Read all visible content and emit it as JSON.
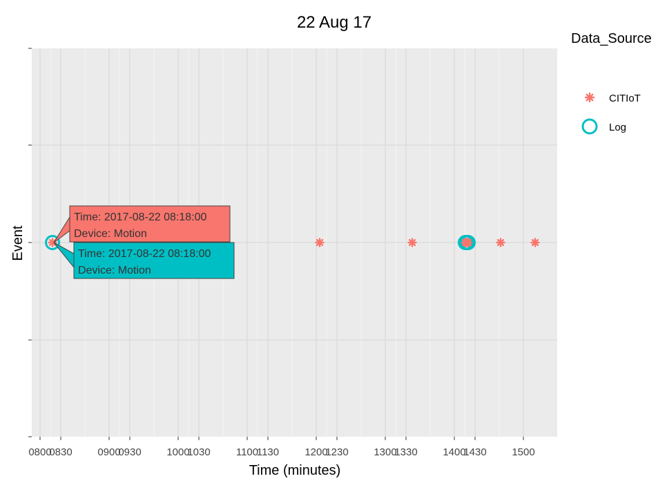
{
  "chart_data": {
    "type": "scatter",
    "title": "22 Aug 17",
    "xlabel": "Time (minutes)",
    "ylabel": "Event",
    "x_ticks": [
      "0800",
      "0830",
      "0900",
      "0930",
      "1000",
      "1030",
      "1100",
      "1130",
      "1200",
      "1230",
      "1300",
      "1330",
      "1400",
      "1430",
      "1500"
    ],
    "xlim": [
      "0800",
      "1545"
    ],
    "grid": true,
    "legend": {
      "title": "Data_Source",
      "placement": "right"
    },
    "series": [
      {
        "name": "CITIoT",
        "color": "#F8766D",
        "marker": "asterisk",
        "x": [
          "0818",
          "1205",
          "1339",
          "1416",
          "1417",
          "1418",
          "1418",
          "1419",
          "1420",
          "1467",
          "1517"
        ]
      },
      {
        "name": "Log",
        "color": "#00BFC4",
        "marker": "circle",
        "x": [
          "0818",
          "1416",
          "1417",
          "1418",
          "1419",
          "1420"
        ]
      }
    ],
    "annotations": [
      {
        "series": "CITIoT",
        "line1": "Time: 2017-08-22 08:18:00",
        "line2": "Device: Motion",
        "color": "#F8766D"
      },
      {
        "series": "Log",
        "line1": "Time: 2017-08-22 08:18:00",
        "line2": "Device: Motion",
        "color": "#00BFC4"
      }
    ]
  }
}
